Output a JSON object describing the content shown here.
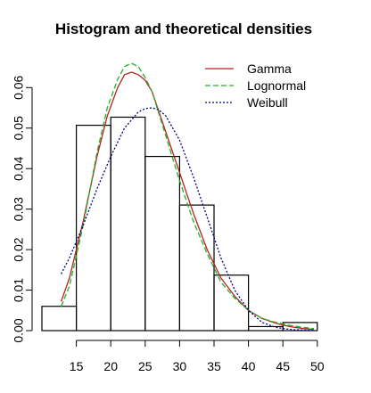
{
  "chart_data": {
    "type": "bar",
    "title": "Histogram and theoretical densities",
    "xlabel": "",
    "ylabel": "",
    "xlim": [
      10,
      50
    ],
    "ylim": [
      0,
      0.065
    ],
    "x_ticks": [
      15,
      20,
      25,
      30,
      35,
      40,
      45,
      50
    ],
    "y_ticks": [
      0.0,
      0.01,
      0.02,
      0.03,
      0.04,
      0.05,
      0.06
    ],
    "y_tick_labels": [
      "0.00",
      "0.01",
      "0.02",
      "0.03",
      "0.04",
      "0.05",
      "0.06"
    ],
    "histogram": {
      "breaks": [
        10,
        15,
        20,
        25,
        30,
        35,
        40,
        45,
        50
      ],
      "densities": [
        0.006,
        0.0507,
        0.0527,
        0.043,
        0.031,
        0.0137,
        0.001,
        0.002
      ]
    },
    "series": [
      {
        "name": "Gamma",
        "color": "#b22222",
        "dash": "solid",
        "x": [
          12.8,
          14,
          16,
          18,
          19.5,
          21,
          22,
          23,
          24,
          25,
          26,
          28,
          30,
          32,
          34,
          36,
          38,
          40,
          42,
          44,
          46,
          48,
          49.5
        ],
        "y": [
          0.0072,
          0.013,
          0.027,
          0.043,
          0.053,
          0.06,
          0.0632,
          0.0638,
          0.0632,
          0.0618,
          0.059,
          0.049,
          0.039,
          0.029,
          0.02,
          0.013,
          0.0085,
          0.005,
          0.003,
          0.0018,
          0.001,
          0.0005,
          0.0003
        ]
      },
      {
        "name": "Lognormal",
        "color": "#22b222",
        "dash": "dashed",
        "x": [
          12.8,
          14,
          16,
          18,
          19.5,
          21,
          22,
          23,
          24,
          25,
          26,
          28,
          30,
          32,
          34,
          36,
          38,
          40,
          42,
          44,
          46,
          48,
          49.5
        ],
        "y": [
          0.006,
          0.011,
          0.026,
          0.044,
          0.055,
          0.062,
          0.0652,
          0.066,
          0.0652,
          0.0625,
          0.059,
          0.048,
          0.037,
          0.027,
          0.019,
          0.012,
          0.008,
          0.005,
          0.003,
          0.002,
          0.0013,
          0.0008,
          0.0005
        ]
      },
      {
        "name": "Weibull",
        "color": "#00008b",
        "dash": "dotted",
        "x": [
          12.8,
          14,
          16,
          18,
          20,
          22,
          24,
          25,
          26,
          27,
          28,
          30,
          32,
          34,
          36,
          38,
          40,
          42,
          44,
          46,
          48,
          49.5
        ],
        "y": [
          0.014,
          0.018,
          0.026,
          0.035,
          0.043,
          0.05,
          0.054,
          0.0548,
          0.055,
          0.0545,
          0.053,
          0.047,
          0.038,
          0.028,
          0.018,
          0.01,
          0.005,
          0.002,
          0.0008,
          0.0003,
          0.0001,
          5e-05
        ]
      }
    ],
    "legend_position": "top-right"
  }
}
